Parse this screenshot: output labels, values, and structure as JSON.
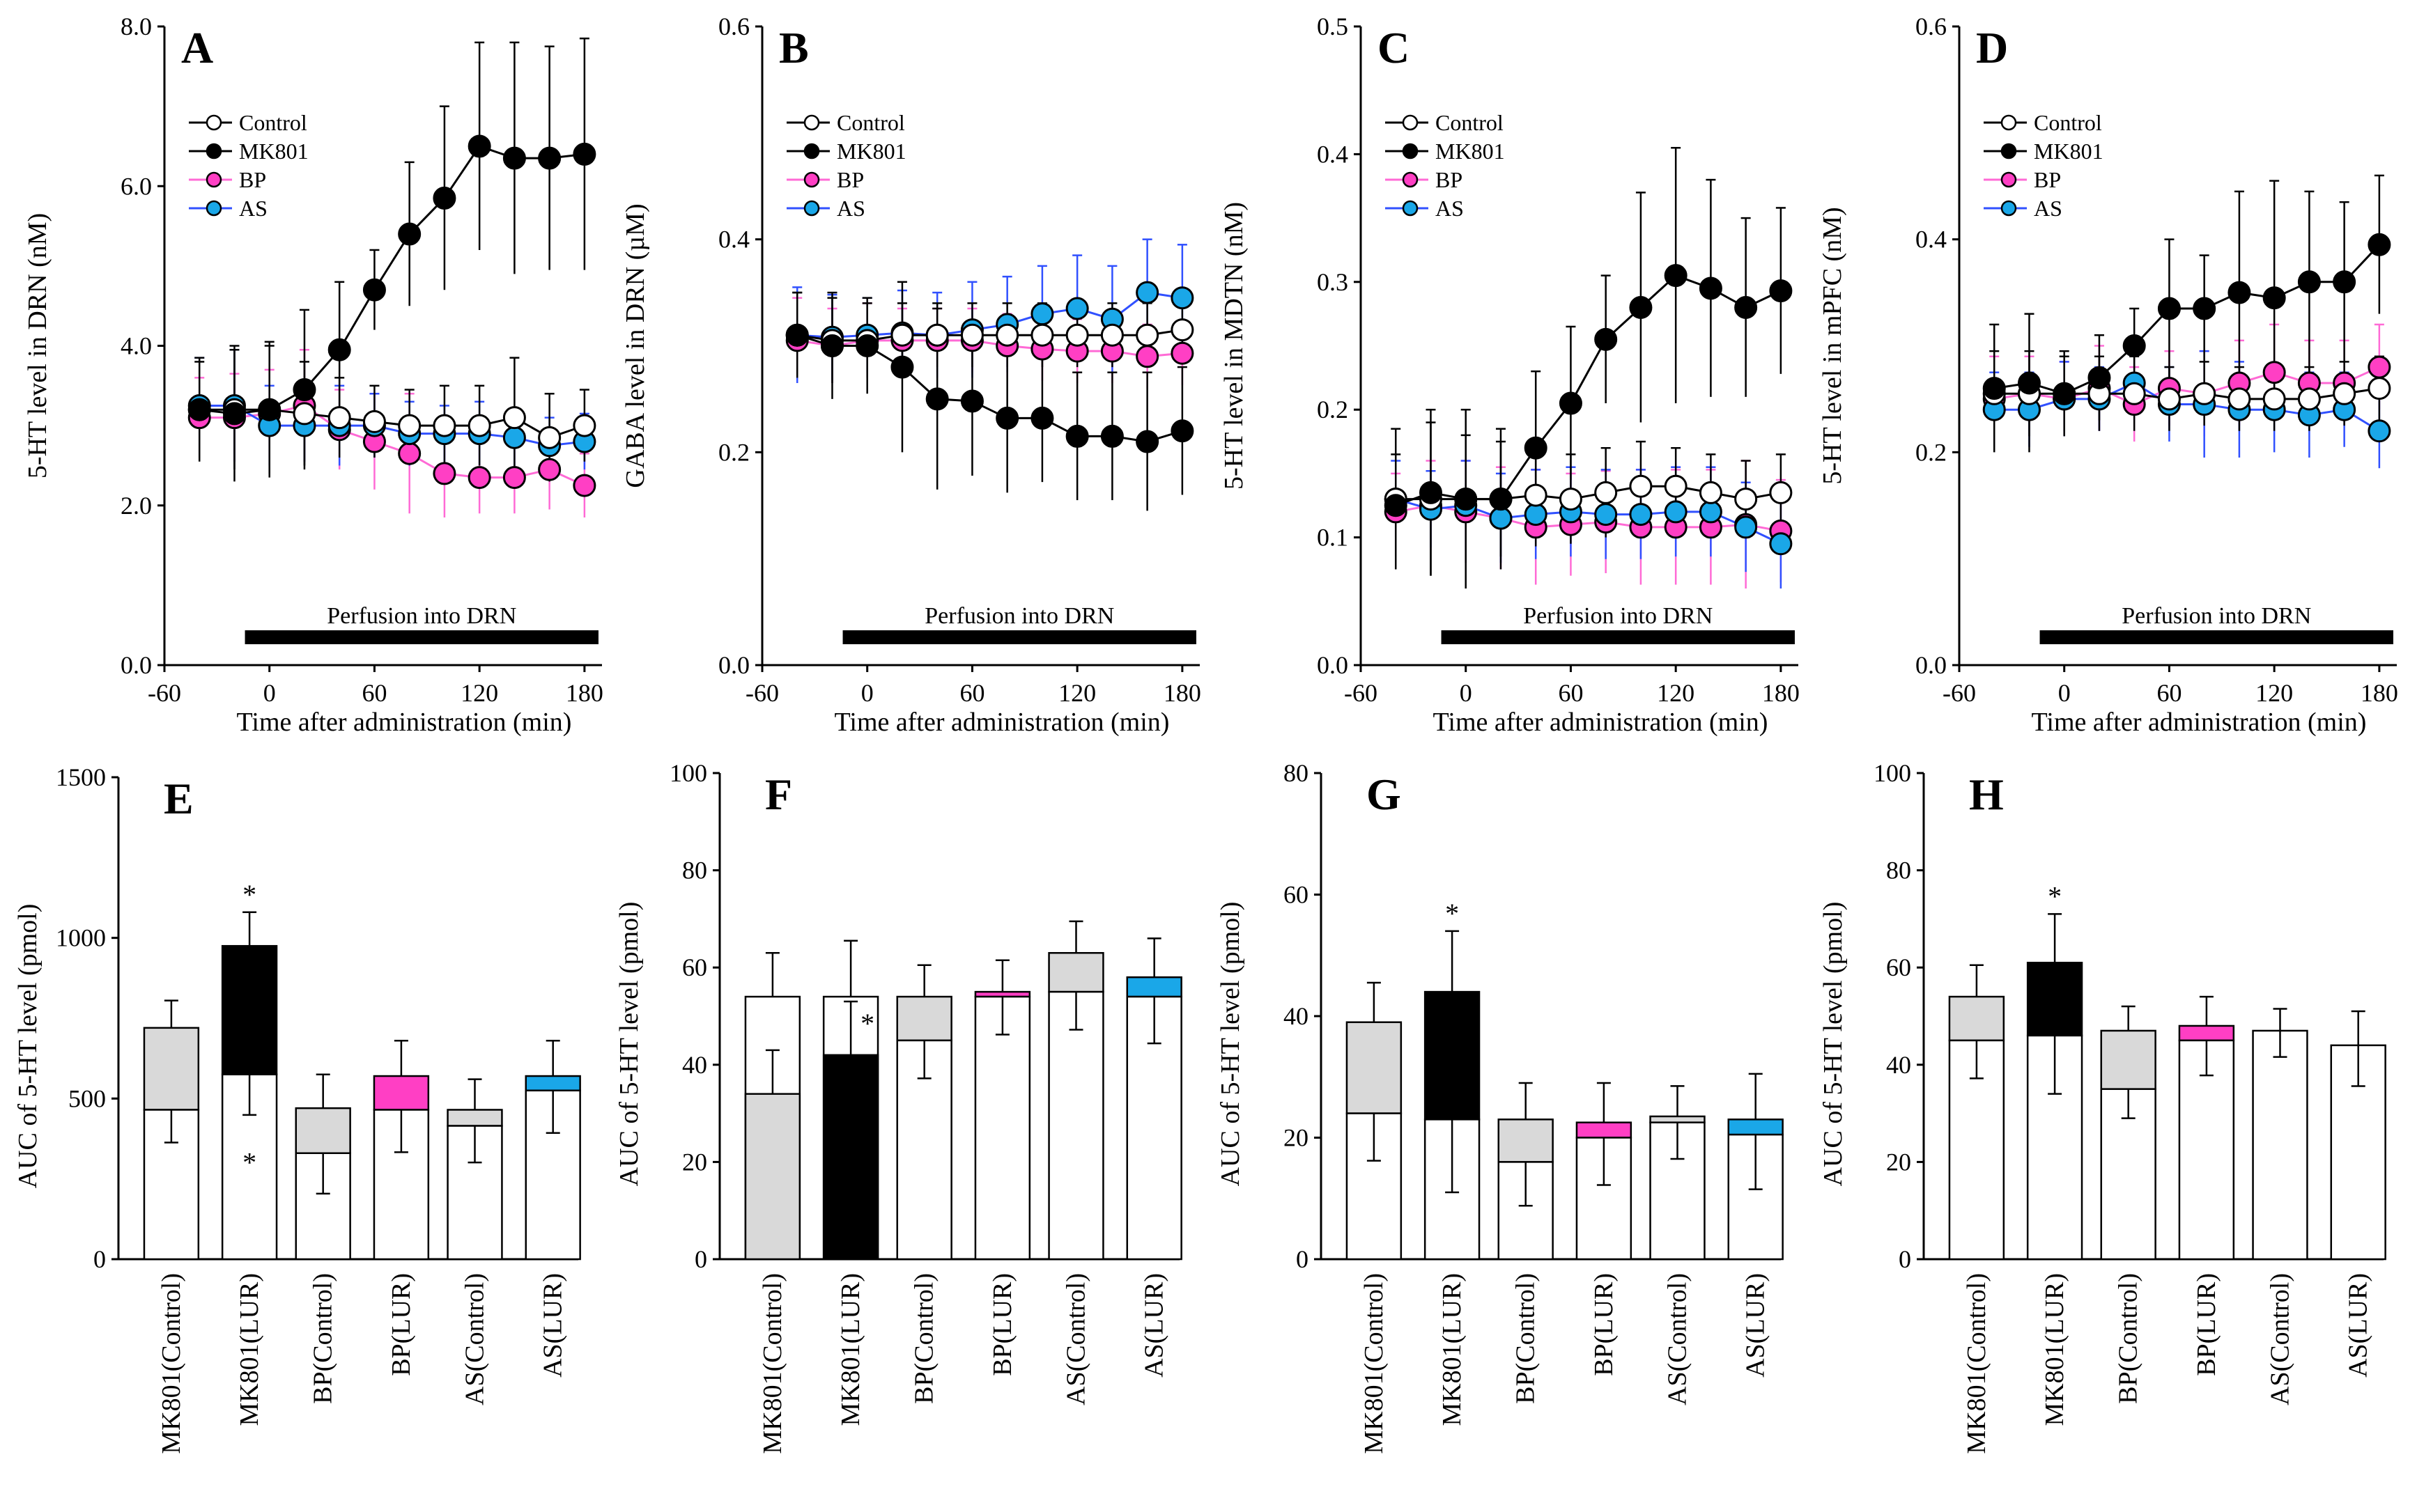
{
  "colors": {
    "control": "#ffffff",
    "mk801": "#000000",
    "bp": "#ff3fc4",
    "as": "#1aa7e8",
    "bp_line": "#ff6ad5",
    "as_line": "#3050ff",
    "gray": "#d9d9d9"
  },
  "perfusion_label": "Perfusion into DRN",
  "legend": [
    "Control",
    "MK801",
    "BP",
    "AS"
  ],
  "chart_data": [
    {
      "panel": "A",
      "type": "line",
      "ylabel": "5-HT level in DRN (nM)",
      "xlabel": "Time after administration (min)",
      "ylim": [
        0,
        8
      ],
      "yticks": [
        "0.0",
        "2.0",
        "4.0",
        "6.0",
        "8.0"
      ],
      "xlim": [
        -60,
        190
      ],
      "xticks": [
        "-60",
        "0",
        "60",
        "120",
        "180"
      ],
      "x": [
        -40,
        -20,
        0,
        20,
        40,
        60,
        80,
        100,
        120,
        140,
        160,
        180
      ],
      "series": [
        {
          "name": "Control",
          "values": [
            3.2,
            3.2,
            3.2,
            3.15,
            3.1,
            3.05,
            3.0,
            3.0,
            3.0,
            3.1,
            2.85,
            3.0
          ],
          "err": [
            0.6,
            0.75,
            0.8,
            0.65,
            0.5,
            0.45,
            0.45,
            0.5,
            0.5,
            0.75,
            0.55,
            0.45
          ]
        },
        {
          "name": "MK801",
          "values": [
            3.2,
            3.15,
            3.2,
            3.45,
            3.95,
            4.7,
            5.4,
            5.85,
            6.5,
            6.35,
            6.35,
            6.4
          ],
          "err": [
            0.65,
            0.85,
            0.85,
            1.0,
            0.85,
            0.5,
            0.9,
            1.15,
            1.3,
            1.45,
            1.4,
            1.45
          ]
        },
        {
          "name": "BP",
          "values": [
            3.1,
            3.1,
            3.15,
            3.25,
            2.95,
            2.8,
            2.65,
            2.4,
            2.35,
            2.35,
            2.45,
            2.25
          ],
          "err": [
            0.5,
            0.55,
            0.55,
            0.7,
            0.5,
            0.6,
            0.75,
            0.55,
            0.45,
            0.45,
            0.5,
            0.4
          ]
        },
        {
          "name": "AS",
          "values": [
            3.25,
            3.25,
            3.0,
            3.0,
            3.0,
            3.0,
            2.9,
            2.9,
            2.9,
            2.85,
            2.75,
            2.8
          ],
          "err": [
            0.6,
            0.7,
            0.5,
            0.45,
            0.5,
            0.4,
            0.4,
            0.35,
            0.4,
            0.35,
            0.35,
            0.35
          ]
        }
      ]
    },
    {
      "panel": "B",
      "type": "line",
      "ylabel": "GABA level in DRN (µM)",
      "xlabel": "Time after administration (min)",
      "ylim": [
        0,
        0.6
      ],
      "yticks": [
        "0.0",
        "0.2",
        "0.4",
        "0.6"
      ],
      "xlim": [
        -60,
        190
      ],
      "xticks": [
        "-60",
        "0",
        "60",
        "120",
        "180"
      ],
      "x": [
        -40,
        -20,
        0,
        20,
        40,
        60,
        80,
        100,
        120,
        140,
        160,
        180
      ],
      "series": [
        {
          "name": "Control",
          "values": [
            0.31,
            0.305,
            0.305,
            0.31,
            0.31,
            0.31,
            0.31,
            0.31,
            0.31,
            0.31,
            0.31,
            0.315
          ],
          "err": [
            0.04,
            0.04,
            0.035,
            0.03,
            0.03,
            0.03,
            0.03,
            0.03,
            0.03,
            0.03,
            0.03,
            0.03
          ]
        },
        {
          "name": "MK801",
          "values": [
            0.31,
            0.3,
            0.3,
            0.28,
            0.25,
            0.248,
            0.232,
            0.232,
            0.215,
            0.215,
            0.21,
            0.22
          ],
          "err": [
            0.04,
            0.05,
            0.045,
            0.08,
            0.085,
            0.07,
            0.07,
            0.06,
            0.06,
            0.06,
            0.065,
            0.06
          ]
        },
        {
          "name": "BP",
          "values": [
            0.305,
            0.3,
            0.305,
            0.305,
            0.305,
            0.305,
            0.3,
            0.297,
            0.295,
            0.295,
            0.29,
            0.293
          ],
          "err": [
            0.04,
            0.035,
            0.035,
            0.03,
            0.03,
            0.03,
            0.03,
            0.03,
            0.03,
            0.03,
            0.03,
            0.03
          ]
        },
        {
          "name": "AS",
          "values": [
            0.31,
            0.308,
            0.31,
            0.312,
            0.31,
            0.315,
            0.32,
            0.33,
            0.335,
            0.325,
            0.35,
            0.345
          ],
          "err": [
            0.045,
            0.04,
            0.035,
            0.04,
            0.04,
            0.045,
            0.045,
            0.045,
            0.05,
            0.05,
            0.05,
            0.05
          ]
        }
      ]
    },
    {
      "panel": "C",
      "type": "line",
      "ylabel": "5-HT level in MDTN (nM)",
      "xlabel": "Time after administration (min)",
      "ylim": [
        0,
        0.5
      ],
      "yticks": [
        "0.0",
        "0.1",
        "0.2",
        "0.3",
        "0.4",
        "0.5"
      ],
      "xlim": [
        -60,
        190
      ],
      "xticks": [
        "-60",
        "0",
        "60",
        "120",
        "180"
      ],
      "x": [
        -40,
        -20,
        0,
        20,
        40,
        60,
        80,
        100,
        120,
        140,
        160,
        180
      ],
      "series": [
        {
          "name": "Control",
          "values": [
            0.13,
            0.13,
            0.13,
            0.13,
            0.133,
            0.13,
            0.135,
            0.14,
            0.14,
            0.135,
            0.13,
            0.135
          ],
          "err": [
            0.055,
            0.06,
            0.05,
            0.045,
            0.04,
            0.035,
            0.035,
            0.035,
            0.03,
            0.03,
            0.03,
            0.03
          ]
        },
        {
          "name": "MK801",
          "values": [
            0.125,
            0.135,
            0.13,
            0.13,
            0.17,
            0.205,
            0.255,
            0.28,
            0.305,
            0.295,
            0.28,
            0.293
          ],
          "err": [
            0.04,
            0.065,
            0.07,
            0.055,
            0.06,
            0.06,
            0.05,
            0.09,
            0.1,
            0.085,
            0.07,
            0.065
          ]
        },
        {
          "name": "BP",
          "values": [
            0.12,
            0.125,
            0.12,
            0.115,
            0.108,
            0.11,
            0.112,
            0.108,
            0.108,
            0.108,
            0.11,
            0.105
          ],
          "err": [
            0.03,
            0.035,
            0.04,
            0.04,
            0.045,
            0.04,
            0.04,
            0.045,
            0.045,
            0.045,
            0.05,
            0.04
          ]
        },
        {
          "name": "AS",
          "values": [
            0.13,
            0.122,
            0.125,
            0.115,
            0.118,
            0.12,
            0.118,
            0.118,
            0.12,
            0.12,
            0.108,
            0.095
          ],
          "err": [
            0.03,
            0.03,
            0.035,
            0.035,
            0.035,
            0.035,
            0.035,
            0.035,
            0.035,
            0.035,
            0.035,
            0.035
          ]
        }
      ]
    },
    {
      "panel": "D",
      "type": "line",
      "ylabel": "5-HT level in mPFC (nM)",
      "xlabel": "Time after administration (min)",
      "ylim": [
        0,
        0.6
      ],
      "yticks": [
        "0.0",
        "0.2",
        "0.4",
        "0.6"
      ],
      "xlim": [
        -60,
        190
      ],
      "xticks": [
        "-60",
        "0",
        "60",
        "120",
        "180"
      ],
      "x": [
        -40,
        -20,
        0,
        20,
        40,
        60,
        80,
        100,
        120,
        140,
        160,
        180
      ],
      "series": [
        {
          "name": "Control",
          "values": [
            0.255,
            0.255,
            0.255,
            0.255,
            0.255,
            0.25,
            0.255,
            0.25,
            0.25,
            0.25,
            0.255,
            0.26
          ],
          "err": [
            0.04,
            0.04,
            0.035,
            0.035,
            0.035,
            0.03,
            0.03,
            0.03,
            0.03,
            0.03,
            0.03,
            0.03
          ]
        },
        {
          "name": "MK801",
          "values": [
            0.26,
            0.265,
            0.255,
            0.27,
            0.3,
            0.335,
            0.335,
            0.35,
            0.345,
            0.36,
            0.36,
            0.395
          ],
          "err": [
            0.06,
            0.065,
            0.04,
            0.04,
            0.035,
            0.065,
            0.05,
            0.095,
            0.11,
            0.085,
            0.075,
            0.065
          ]
        },
        {
          "name": "BP",
          "values": [
            0.25,
            0.255,
            0.25,
            0.26,
            0.245,
            0.26,
            0.255,
            0.265,
            0.275,
            0.265,
            0.265,
            0.28
          ],
          "err": [
            0.04,
            0.035,
            0.035,
            0.04,
            0.035,
            0.035,
            0.04,
            0.04,
            0.045,
            0.04,
            0.04,
            0.04
          ]
        },
        {
          "name": "AS",
          "values": [
            0.24,
            0.24,
            0.25,
            0.25,
            0.265,
            0.245,
            0.245,
            0.24,
            0.24,
            0.235,
            0.24,
            0.22
          ],
          "err": [
            0.035,
            0.035,
            0.035,
            0.03,
            0.035,
            0.035,
            0.05,
            0.045,
            0.04,
            0.04,
            0.035,
            0.035
          ]
        }
      ]
    },
    {
      "panel": "E",
      "type": "bar",
      "ylabel": "AUC of 5-HT level (pmol)",
      "ylim": [
        0,
        1500
      ],
      "yticks": [
        "0",
        "500",
        "1000",
        "1500"
      ],
      "categories": [
        "MK801(Control)",
        "MK801(LUR)",
        "BP(Control)",
        "BP(LUR)",
        "AS(Control)",
        "AS(LUR)"
      ],
      "total": [
        720,
        975,
        470,
        570,
        465,
        570
      ],
      "base": [
        465,
        575,
        330,
        465,
        415,
        525
      ],
      "err": [
        85,
        105,
        105,
        110,
        95,
        110
      ],
      "stars": [
        "",
        "*",
        "",
        "",
        "",
        ""
      ],
      "base_stars": [
        "",
        "*",
        "",
        "",
        "",
        ""
      ]
    },
    {
      "panel": "F",
      "type": "bar",
      "ylabel": "AUC of 5-HT level (pmol)",
      "ylim": [
        0,
        100
      ],
      "yticks": [
        "0",
        "20",
        "40",
        "60",
        "80",
        "100"
      ],
      "categories": [
        "MK801(Control)",
        "MK801(LUR)",
        "BP(Control)",
        "BP(LUR)",
        "AS(Control)",
        "AS(LUR)"
      ],
      "total": [
        34,
        42,
        54,
        55,
        63,
        58
      ],
      "base": [
        34,
        42,
        45,
        54,
        55,
        54
      ],
      "err": [
        9,
        11,
        6.5,
        6.5,
        6.5,
        8
      ],
      "outline": [
        54,
        54,
        0,
        0,
        0,
        0
      ],
      "outline_err": [
        9,
        11.5,
        0,
        0,
        0,
        0
      ],
      "stars": [
        "",
        "",
        "",
        "",
        "",
        ""
      ],
      "base_stars": [
        "",
        "*",
        "",
        "",
        "",
        ""
      ]
    },
    {
      "panel": "G",
      "type": "bar",
      "ylabel": "AUC of 5-HT level (pmol)",
      "ylim": [
        0,
        80
      ],
      "yticks": [
        "0",
        "20",
        "40",
        "60",
        "80"
      ],
      "categories": [
        "MK801(Control)",
        "MK801(LUR)",
        "BP(Control)",
        "BP(LUR)",
        "AS(Control)",
        "AS(LUR)"
      ],
      "total": [
        39,
        44,
        23,
        22.5,
        23.5,
        23
      ],
      "base": [
        24,
        23,
        16,
        20,
        22.5,
        20.5
      ],
      "err": [
        6.5,
        10,
        6,
        6.5,
        5,
        7.5
      ],
      "stars": [
        "",
        "*",
        "",
        "",
        "",
        ""
      ],
      "base_stars": [
        "",
        "",
        "",
        "",
        "",
        ""
      ]
    },
    {
      "panel": "H",
      "type": "bar",
      "ylabel": "AUC of 5-HT level (pmol)",
      "ylim": [
        0,
        100
      ],
      "yticks": [
        "0",
        "20",
        "40",
        "60",
        "80",
        "100"
      ],
      "categories": [
        "MK801(Control)",
        "MK801(LUR)",
        "BP(Control)",
        "BP(LUR)",
        "AS(Control)",
        "AS(LUR)"
      ],
      "total": [
        54,
        61,
        47,
        48,
        47,
        44
      ],
      "base": [
        45,
        46,
        35,
        45,
        47,
        44
      ],
      "err": [
        6.5,
        10,
        5,
        6,
        4.5,
        7
      ],
      "stars": [
        "",
        "*",
        "",
        "",
        "",
        ""
      ],
      "base_stars": [
        "",
        "",
        "",
        "",
        "",
        ""
      ]
    }
  ]
}
